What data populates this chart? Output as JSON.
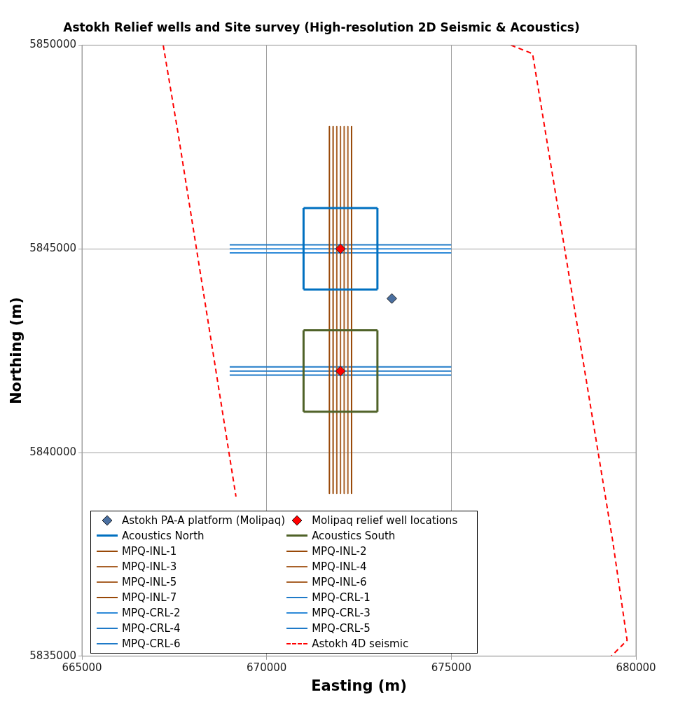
{
  "chart_data": {
    "type": "scatter",
    "title": "Astokh Relief wells and Site survey (High-resolution 2D Seismic & Acoustics)",
    "xlabel": "Easting (m)",
    "ylabel": "Northing (m)",
    "xlim": [
      665000,
      680000
    ],
    "ylim": [
      5835000,
      5850000
    ],
    "xticks": [
      665000,
      670000,
      675000,
      680000
    ],
    "yticks": [
      5835000,
      5840000,
      5845000,
      5850000
    ],
    "grid": true,
    "legend": "bottom",
    "series": [
      {
        "name": "Astokh PA-A platform (Molipaq)",
        "type": "scatter",
        "marker": "diamond",
        "color": "#4a6fa0",
        "x": [
          673390
        ],
        "values": [
          5843780
        ]
      },
      {
        "name": "Molipaq relief well locations",
        "type": "scatter",
        "marker": "diamond",
        "color": "#ff0000",
        "x": [
          672000,
          672000
        ],
        "values": [
          5845000,
          5842000
        ]
      },
      {
        "name": "Acoustics North",
        "type": "line",
        "color": "#0070c0",
        "x": [
          671000,
          671000,
          null,
          673000,
          673000,
          null,
          671000,
          673000
        ],
        "values": [
          5844000,
          5846000,
          null,
          5844000,
          5846000,
          null,
          5844000,
          5844000
        ]
      },
      {
        "type": "line",
        "color": "#0070c0",
        "x": [
          671000,
          673000
        ],
        "values": [
          5846000,
          5846000
        ]
      },
      {
        "name": "Acoustics South",
        "type": "line",
        "color": "#4f6228",
        "x": [
          671000,
          671000,
          null,
          673000,
          673000,
          null,
          671000,
          673000
        ],
        "values": [
          5841000,
          5843000,
          null,
          5841000,
          5843000,
          null,
          5841000,
          5841000
        ]
      },
      {
        "type": "line",
        "color": "#4f6228",
        "x": [
          671000,
          673000
        ],
        "values": [
          5843000,
          5843000
        ]
      },
      {
        "name": "MPQ-INL-1",
        "type": "line",
        "color": "#984807",
        "x": [
          671700,
          671700
        ],
        "values": [
          5848000,
          5839000
        ]
      },
      {
        "name": "MPQ-INL-2",
        "type": "line",
        "color": "#984807",
        "x": [
          671800,
          671800
        ],
        "values": [
          5848000,
          5839000
        ]
      },
      {
        "name": "MPQ-INL-3",
        "type": "line",
        "color": "#a9622a",
        "x": [
          671900,
          671900
        ],
        "values": [
          5848000,
          5839000
        ]
      },
      {
        "name": "MPQ-INL-4",
        "type": "line",
        "color": "#a9622a",
        "x": [
          672000,
          672000
        ],
        "values": [
          5848000,
          5839000
        ]
      },
      {
        "name": "MPQ-INL-5",
        "type": "line",
        "color": "#a9622a",
        "x": [
          672100,
          672100
        ],
        "values": [
          5848000,
          5839000
        ]
      },
      {
        "name": "MPQ-INL-6",
        "type": "line",
        "color": "#a9622a",
        "x": [
          672200,
          672200
        ],
        "values": [
          5848000,
          5839000
        ]
      },
      {
        "name": "MPQ-INL-7",
        "type": "line",
        "color": "#984807",
        "x": [
          672300,
          672300
        ],
        "values": [
          5848000,
          5839000
        ]
      },
      {
        "name": "MPQ-CRL-1",
        "type": "line",
        "color": "#1f7ac8",
        "x": [
          669000,
          675000
        ],
        "values": [
          5845100,
          5845100
        ]
      },
      {
        "name": "MPQ-CRL-2",
        "type": "line",
        "color": "#2e8ad8",
        "x": [
          669000,
          675000
        ],
        "values": [
          5845000,
          5845000
        ]
      },
      {
        "name": "MPQ-CRL-3",
        "type": "line",
        "color": "#2e8ad8",
        "x": [
          669000,
          675000
        ],
        "values": [
          5844900,
          5844900
        ]
      },
      {
        "name": "MPQ-CRL-4",
        "type": "line",
        "color": "#1f7ac8",
        "x": [
          669000,
          675000
        ],
        "values": [
          5842100,
          5842100
        ]
      },
      {
        "name": "MPQ-CRL-5",
        "type": "line",
        "color": "#1f7ac8",
        "x": [
          669000,
          675000
        ],
        "values": [
          5842000,
          5842000
        ]
      },
      {
        "name": "MPQ-CRL-6",
        "type": "line",
        "color": "#1f7ac8",
        "x": [
          669000,
          675000
        ],
        "values": [
          5841900,
          5841900
        ]
      },
      {
        "name": "Astokh 4D seismic",
        "type": "line",
        "line_style": "dashed",
        "color": "#ff0000",
        "x": [
          667200,
          667600,
          669170,
          null,
          676610,
          677200,
          679370,
          679760,
          679330
        ],
        "values": [
          5850000,
          5847850,
          5838920,
          null,
          5850000,
          5849790,
          5837830,
          5835390,
          5835000
        ]
      }
    ]
  }
}
